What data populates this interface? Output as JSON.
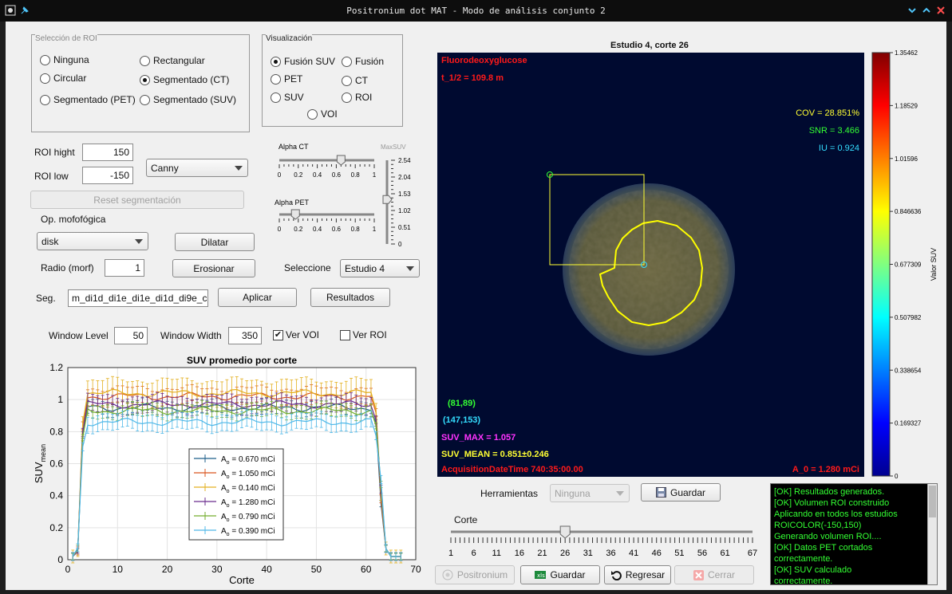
{
  "window": {
    "title": "Positronium dot MAT - Modo de análisis conjunto 2"
  },
  "roi_panel": {
    "title": "Selección de ROI",
    "options": [
      {
        "label": "Ninguna",
        "selected": false
      },
      {
        "label": "Rectangular",
        "selected": false
      },
      {
        "label": "Circular",
        "selected": false
      },
      {
        "label": "Segmentado (CT)",
        "selected": true
      },
      {
        "label": "Segmentado (PET)",
        "selected": false
      },
      {
        "label": "Segmentado (SUV)",
        "selected": false
      }
    ]
  },
  "vis_panel": {
    "title": "Visualización",
    "options": [
      {
        "label": "Fusión SUV",
        "selected": true
      },
      {
        "label": "Fusión",
        "selected": false
      },
      {
        "label": "PET",
        "selected": false
      },
      {
        "label": "CT",
        "selected": false
      },
      {
        "label": "SUV",
        "selected": false
      },
      {
        "label": "ROI",
        "selected": false
      },
      {
        "label": "VOI",
        "selected": false
      }
    ]
  },
  "controls": {
    "roi_high_label": "ROI hight",
    "roi_high_value": "150",
    "roi_low_label": "ROI low",
    "roi_low_value": "-150",
    "method": "Canny",
    "reset_label": "Reset segmentación",
    "morph_label": "Op. mofofógica",
    "morph_value": "disk",
    "dilate_label": "Dilatar",
    "radius_label": "Radio  (morf)",
    "radius_value": "1",
    "erode_label": "Erosionar",
    "select_label": "Seleccione",
    "select_value": "Estudio 4",
    "seg_label": "Seg.",
    "seg_value": "m_di1d_di1e_di1e_di1d_di9e_c",
    "apply_label": "Aplicar",
    "results_label": "Resultados",
    "wl_label": "Window Level",
    "wl_value": "50",
    "ww_label": "Window Width",
    "ww_value": "350",
    "ver_voi": "Ver VOI",
    "ver_voi_checked": true,
    "ver_roi": "Ver ROI",
    "ver_roi_checked": false
  },
  "sliders": {
    "alpha_ct": {
      "label": "Alpha CT",
      "value": 0.65,
      "ticks": [
        "0",
        "0.2",
        "0.4",
        "0.6",
        "0.8",
        "1"
      ]
    },
    "alpha_pet": {
      "label": "Alpha PET",
      "value": 0.17,
      "ticks": [
        "0",
        "0.2",
        "0.4",
        "0.6",
        "0.8",
        "1"
      ]
    },
    "maxsuv": {
      "label": "MaxSUV",
      "value": 1.35,
      "ticks": [
        "2.54",
        "2.04",
        "1.53",
        "1.02",
        "0.51",
        "0"
      ]
    }
  },
  "image_view": {
    "title": "Estudio 4, corte 26",
    "tracer": "Fluorodeoxyglucose",
    "half_life": "t_1/2 = 109.8 m",
    "cov": "COV = 28.851%",
    "snr": "SNR = 3.466",
    "iu": "IU = 0.924",
    "pt1": "(81,89)",
    "pt2": "(147,153)",
    "suv_max": "SUV_MAX = 1.057",
    "suv_mean": "SUV_MEAN = 0.851±0.246",
    "acq": "AcquisitionDateTime 740:35:00.00",
    "a0": "A_0 = 1.280 mCi",
    "colors": {
      "red": "#ff1a1a",
      "yellow": "#ffff33",
      "green": "#33ff33",
      "cyan": "#33ddff",
      "magenta": "#ff33ff"
    }
  },
  "colorbar": {
    "label": "Valor SUV",
    "ticks": [
      "1.35462",
      "1.18529",
      "1.01596",
      "0.846636",
      "0.677309",
      "0.507982",
      "0.338654",
      "0.169327",
      "0"
    ]
  },
  "tools": {
    "label": "Herramientas",
    "value": "Ninguna",
    "save_label": "Guardar",
    "corte_label": "Corte",
    "corte_value": 26,
    "corte_ticks": [
      "1",
      "6",
      "11",
      "16",
      "21",
      "26",
      "31",
      "36",
      "41",
      "46",
      "51",
      "56",
      "61",
      "67"
    ]
  },
  "bottom": {
    "positronium": "Positronium",
    "guardar": "Guardar",
    "regresar": "Regresar",
    "cerrar": "Cerrar"
  },
  "log": {
    "lines": [
      "[OK] Resultados generados.",
      "[OK] Volumen ROI construido",
      "Aplicando en todos los estudios",
      "ROICOLOR(-150,150)",
      "Generando volumen ROI....",
      "[OK] Datos PET cortados",
      "correctamente.",
      "[OK] SUV calculado",
      "correctamente."
    ]
  },
  "chart_data": {
    "type": "line",
    "title": "SUV promedio por corte",
    "xlabel": "Corte",
    "ylabel": "SUV",
    "ylabel_sub": "mean",
    "xlim": [
      0,
      70
    ],
    "ylim": [
      0,
      1.2
    ],
    "xticks": [
      0,
      10,
      20,
      30,
      40,
      50,
      60,
      70
    ],
    "yticks": [
      0,
      0.2,
      0.4,
      0.6,
      0.8,
      1,
      1.2
    ],
    "grid": true,
    "legend_position": "center",
    "legend_prefix": "A",
    "legend_sub": "o",
    "series": [
      {
        "name": "= 0.670 mCi",
        "color": "#1f5f8b",
        "plateau": 0.95,
        "err": 0.04
      },
      {
        "name": "= 1.050 mCi",
        "color": "#d9541e",
        "plateau": 1.02,
        "err": 0.05
      },
      {
        "name": "= 0.140 mCi",
        "color": "#e3b020",
        "plateau": 1.04,
        "err": 0.08
      },
      {
        "name": "= 1.280 mCi",
        "color": "#6a2c8e",
        "plateau": 0.97,
        "err": 0.05
      },
      {
        "name": "= 0.790 mCi",
        "color": "#73ad2e",
        "plateau": 0.93,
        "err": 0.04
      },
      {
        "name": "= 0.390 mCi",
        "color": "#4fb8e8",
        "plateau": 0.86,
        "err": 0.05
      }
    ]
  }
}
